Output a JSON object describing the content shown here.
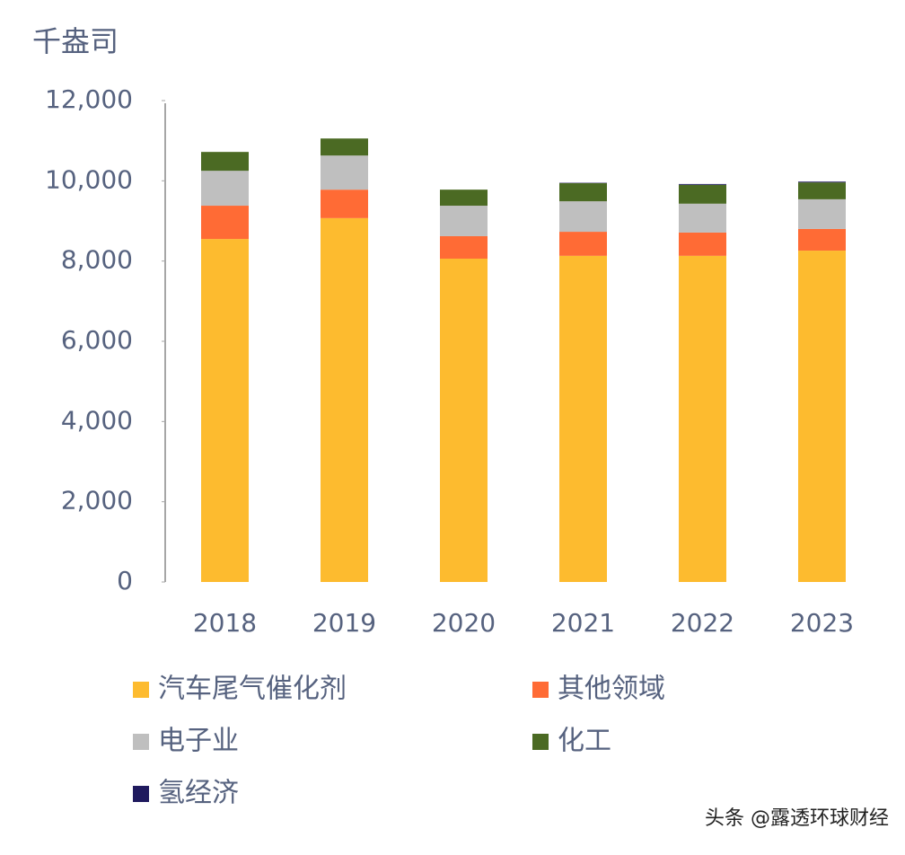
{
  "chart_data": {
    "type": "stacked_bar",
    "y_label": "千盎司",
    "categories": [
      "2018",
      "2019",
      "2020",
      "2021",
      "2022",
      "2023"
    ],
    "series": [
      {
        "name": "汽车尾气催化剂",
        "color": "#fdbb2f",
        "values": [
          8550,
          9070,
          8060,
          8130,
          8130,
          8260
        ]
      },
      {
        "name": "其他领域",
        "color": "#ff6b35",
        "values": [
          830,
          710,
          560,
          600,
          580,
          540
        ]
      },
      {
        "name": "电子业",
        "color": "#bfbfbf",
        "values": [
          870,
          850,
          760,
          760,
          720,
          740
        ]
      },
      {
        "name": "化工",
        "color": "#4b6a23",
        "values": [
          470,
          425,
          400,
          450,
          470,
          420
        ]
      },
      {
        "name": "氢经济",
        "color": "#1f1a5e",
        "values": [
          0,
          0,
          0,
          10,
          20,
          20
        ]
      }
    ],
    "ylim": [
      0,
      12000
    ],
    "yticks": [
      0,
      {
        "value": 2000,
        "label": "2,000"
      },
      {
        "value": 4000,
        "label": "4,000"
      },
      {
        "value": 6000,
        "label": "6,000"
      },
      {
        "value": 8000,
        "label": "8,000"
      },
      {
        "value": 10000,
        "label": "10,000"
      },
      {
        "value": 12000,
        "label": "12,000"
      }
    ],
    "watermark": "头条 @露透环球财经"
  }
}
